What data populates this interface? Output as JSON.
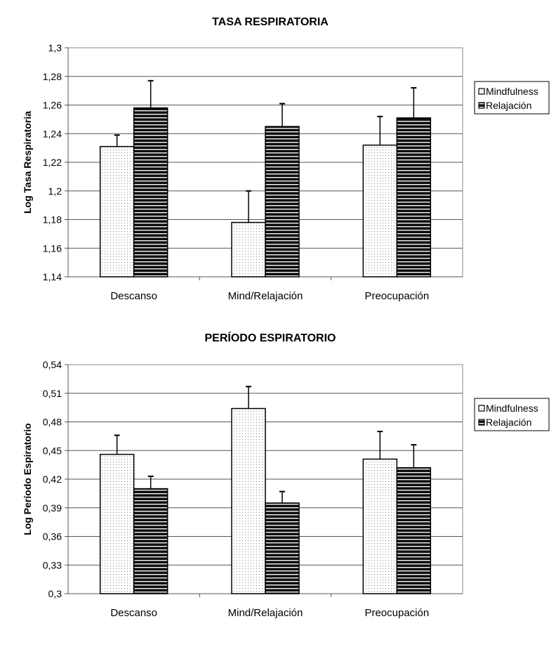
{
  "chart_data": [
    {
      "type": "bar",
      "title": "TASA RESPIRATORIA",
      "ylabel": "Log Tasa Respiratoria",
      "xlabel": "",
      "categories": [
        "Descanso",
        "Mind/Relajación",
        "Preocupación"
      ],
      "ylim": [
        1.14,
        1.3
      ],
      "yticks": [
        "1,14",
        "1,16",
        "1,18",
        "1,2",
        "1,22",
        "1,24",
        "1,26",
        "1,28",
        "1,3"
      ],
      "ytick_values": [
        1.14,
        1.16,
        1.18,
        1.2,
        1.22,
        1.24,
        1.26,
        1.28,
        1.3
      ],
      "grid": true,
      "legend_position": "right",
      "series": [
        {
          "name": "Mindfulness",
          "pattern": "dotted",
          "values": [
            1.231,
            1.178,
            1.232
          ],
          "error_upper": [
            1.239,
            1.2,
            1.252
          ]
        },
        {
          "name": "Relajación",
          "pattern": "horizontal-stripes",
          "values": [
            1.258,
            1.245,
            1.251
          ],
          "error_upper": [
            1.277,
            1.261,
            1.272
          ]
        }
      ]
    },
    {
      "type": "bar",
      "title": "PERÍODO ESPIRATORIO",
      "ylabel": "Log Período Espiratorio",
      "xlabel": "",
      "categories": [
        "Descanso",
        "Mind/Relajación",
        "Preocupación"
      ],
      "ylim": [
        0.3,
        0.54
      ],
      "yticks": [
        "0,3",
        "0,33",
        "0,36",
        "0,39",
        "0,42",
        "0,45",
        "0,48",
        "0,51",
        "0,54"
      ],
      "ytick_values": [
        0.3,
        0.33,
        0.36,
        0.39,
        0.42,
        0.45,
        0.48,
        0.51,
        0.54
      ],
      "grid": true,
      "legend_position": "right",
      "series": [
        {
          "name": "Mindfulness",
          "pattern": "dotted",
          "values": [
            0.446,
            0.494,
            0.441
          ],
          "error_upper": [
            0.466,
            0.517,
            0.47
          ]
        },
        {
          "name": "Relajación",
          "pattern": "horizontal-stripes",
          "values": [
            0.41,
            0.395,
            0.432
          ],
          "error_upper": [
            0.423,
            0.407,
            0.456
          ]
        }
      ]
    }
  ]
}
